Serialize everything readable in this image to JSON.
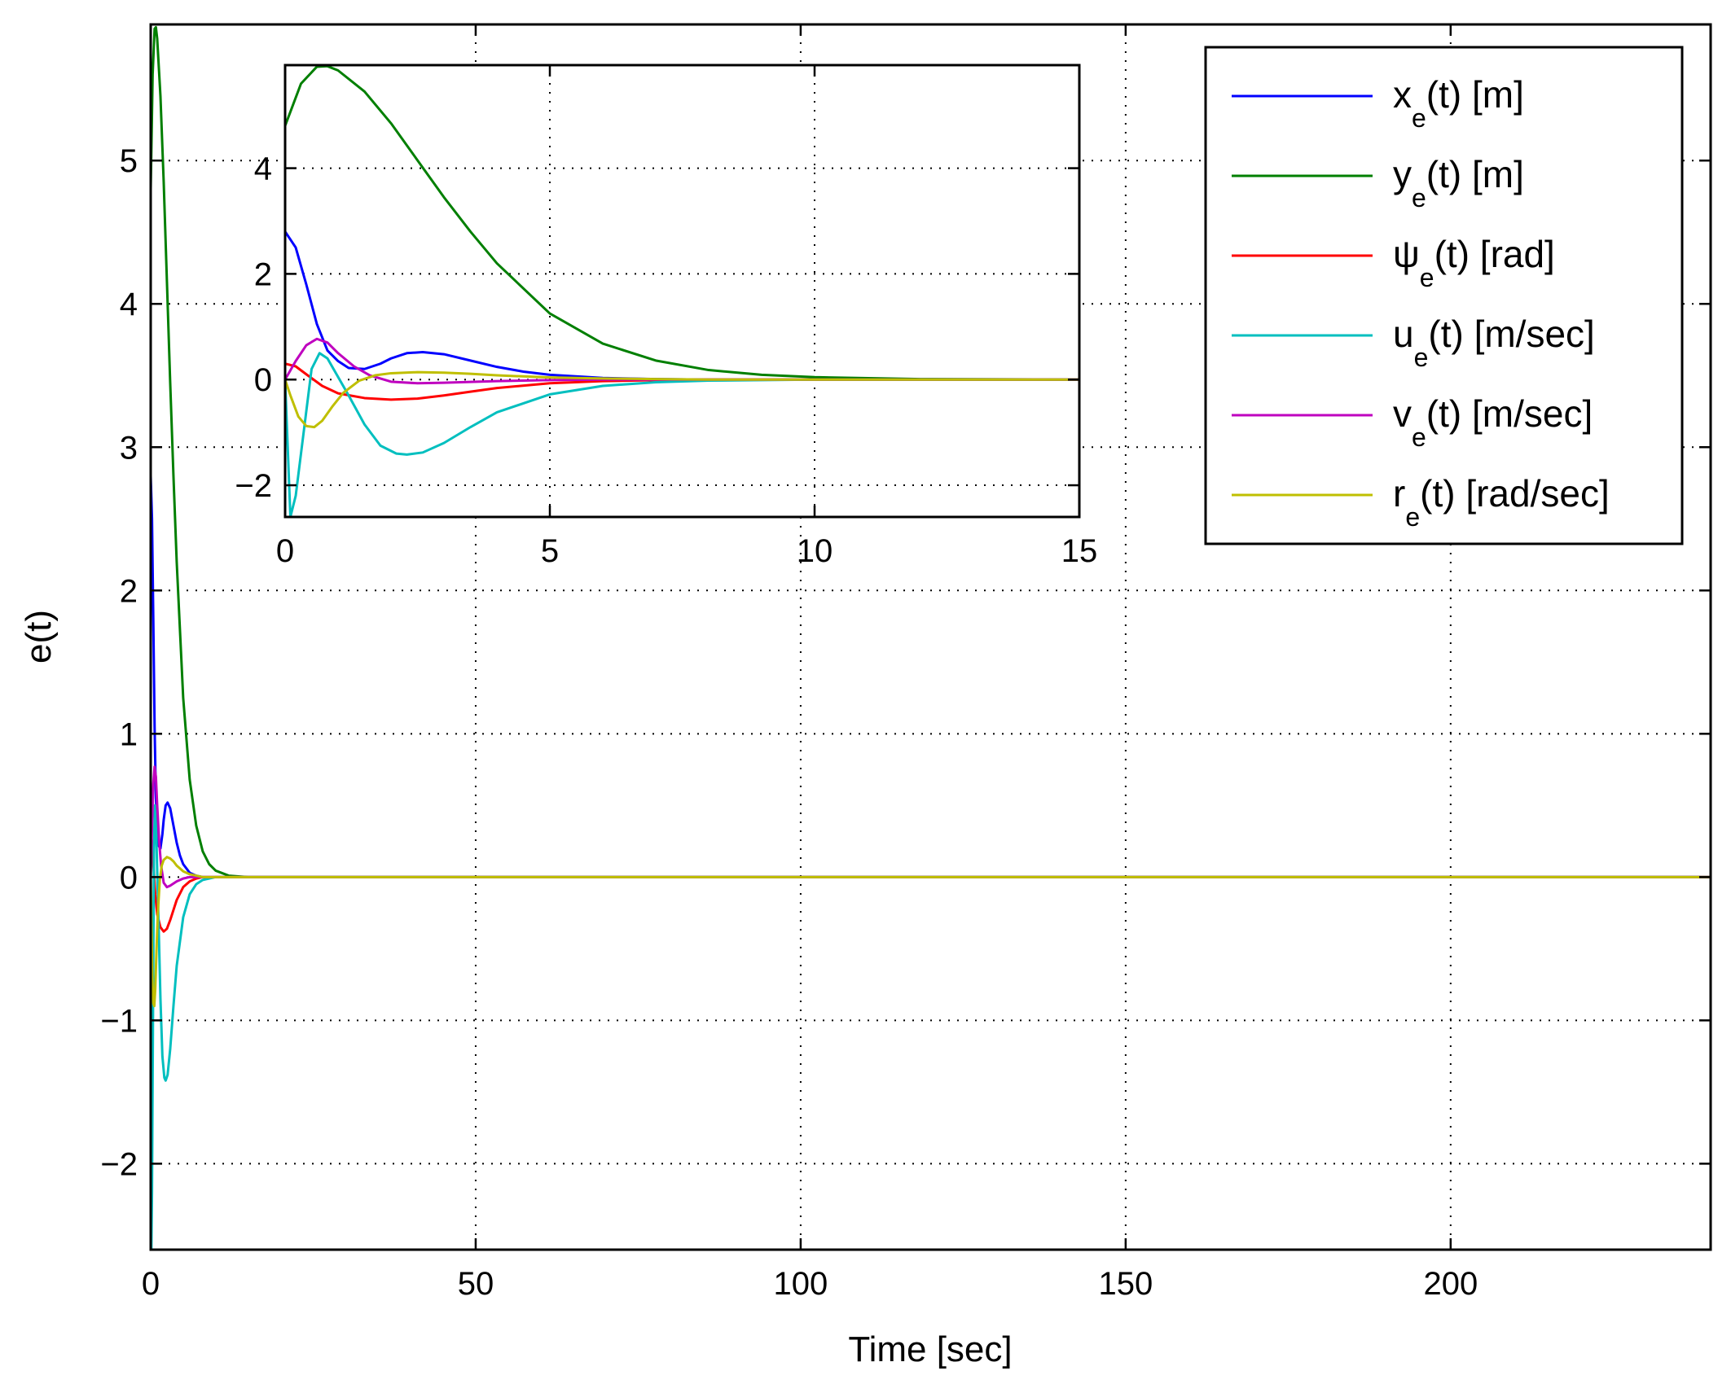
{
  "chart_data": {
    "type": "line",
    "xlabel": "Time [sec]",
    "ylabel": "e(t)",
    "xlim": [
      0,
      240
    ],
    "ylim": [
      -2.6,
      5.95
    ],
    "xticks": [
      0,
      50,
      100,
      150,
      200
    ],
    "yticks": [
      -2,
      -1,
      0,
      1,
      2,
      3,
      4,
      5
    ],
    "xtick_labels": [
      "0",
      "50",
      "100",
      "150",
      "200"
    ],
    "ytick_labels": [
      "−2",
      "−1",
      "0",
      "1",
      "2",
      "3",
      "4",
      "5"
    ],
    "grid": true,
    "legend_position": "top-right",
    "series": [
      {
        "key": "xe",
        "name": "x",
        "sub": "e",
        "suffix": "(t) [m]",
        "color": "#0000ff",
        "x": [
          0,
          0.2,
          0.4,
          0.6,
          0.8,
          1.0,
          1.2,
          1.5,
          1.8,
          2.0,
          2.3,
          2.6,
          3.0,
          3.5,
          4.0,
          4.5,
          5.0,
          6.0,
          7.0,
          8.0,
          10.0,
          12.0,
          15.0,
          240
        ],
        "values": [
          2.8,
          2.5,
          1.8,
          1.05,
          0.55,
          0.35,
          0.22,
          0.2,
          0.3,
          0.4,
          0.5,
          0.52,
          0.48,
          0.36,
          0.24,
          0.15,
          0.09,
          0.03,
          0.01,
          0.0,
          0.0,
          0.0,
          0.0,
          0.0
        ]
      },
      {
        "key": "ye",
        "name": "y",
        "sub": "e",
        "suffix": "(t) [m]",
        "color": "#007f00",
        "x": [
          0,
          0.3,
          0.6,
          0.8,
          1.0,
          1.5,
          2.0,
          2.5,
          3.0,
          3.5,
          4.0,
          5.0,
          6.0,
          7.0,
          8.0,
          9.0,
          10.0,
          12.0,
          15.0,
          240
        ],
        "values": [
          4.8,
          5.6,
          5.92,
          5.93,
          5.85,
          5.45,
          4.85,
          4.15,
          3.45,
          2.8,
          2.2,
          1.25,
          0.68,
          0.36,
          0.18,
          0.09,
          0.045,
          0.01,
          0.0,
          0.0
        ]
      },
      {
        "key": "psie",
        "name": "ψ",
        "sub": "e",
        "suffix": "(t) [rad]",
        "color": "#ff0000",
        "x": [
          0,
          0.2,
          0.4,
          0.7,
          1.0,
          1.5,
          2.0,
          2.5,
          3.0,
          3.5,
          4.0,
          5.0,
          6.0,
          7.0,
          8.0,
          10.0,
          240
        ],
        "values": [
          0.3,
          0.25,
          0.1,
          -0.12,
          -0.26,
          -0.35,
          -0.38,
          -0.36,
          -0.3,
          -0.23,
          -0.16,
          -0.07,
          -0.03,
          -0.01,
          0.0,
          0.0,
          0.0
        ]
      },
      {
        "key": "ue",
        "name": "u",
        "sub": "e",
        "suffix": "(t) [m/sec]",
        "color": "#00bfbf",
        "x": [
          0,
          0.1,
          0.2,
          0.35,
          0.5,
          0.65,
          0.8,
          1.0,
          1.2,
          1.5,
          1.8,
          2.1,
          2.3,
          2.6,
          3.0,
          3.5,
          4.0,
          5.0,
          6.0,
          7.0,
          8.0,
          10.0,
          12.0,
          240
        ],
        "values": [
          0.0,
          -2.6,
          -2.2,
          -1.0,
          0.2,
          0.5,
          0.4,
          0.05,
          -0.3,
          -0.85,
          -1.25,
          -1.4,
          -1.42,
          -1.38,
          -1.2,
          -0.9,
          -0.62,
          -0.28,
          -0.12,
          -0.05,
          -0.02,
          0.0,
          0.0,
          0.0
        ]
      },
      {
        "key": "ve",
        "name": "v",
        "sub": "e",
        "suffix": "(t) [m/sec]",
        "color": "#bf00bf",
        "x": [
          0,
          0.2,
          0.4,
          0.6,
          0.8,
          1.0,
          1.3,
          1.6,
          2.0,
          2.5,
          3.0,
          4.0,
          5.0,
          6.0,
          8.0,
          240
        ],
        "values": [
          0.0,
          0.35,
          0.65,
          0.77,
          0.7,
          0.5,
          0.25,
          0.08,
          -0.04,
          -0.07,
          -0.06,
          -0.03,
          -0.01,
          0.0,
          0.0,
          0.0
        ]
      },
      {
        "key": "re",
        "name": "r",
        "sub": "e",
        "suffix": "(t) [rad/sec]",
        "color": "#bfbf00",
        "x": [
          0,
          0.1,
          0.25,
          0.4,
          0.55,
          0.7,
          0.9,
          1.1,
          1.4,
          1.7,
          2.0,
          2.5,
          3.0,
          3.5,
          4.0,
          5.0,
          6.0,
          7.0,
          8.0,
          10.0,
          12.0,
          240
        ],
        "values": [
          0.0,
          -0.3,
          -0.7,
          -0.88,
          -0.9,
          -0.78,
          -0.5,
          -0.25,
          -0.02,
          0.08,
          0.12,
          0.14,
          0.13,
          0.11,
          0.08,
          0.04,
          0.02,
          0.01,
          0.0,
          0.0,
          0.0,
          0.0
        ]
      }
    ],
    "inset": {
      "xlim": [
        0,
        15
      ],
      "ylim": [
        -2.6,
        5.95
      ],
      "xticks": [
        0,
        5,
        10,
        15
      ],
      "yticks": [
        -2,
        0,
        2,
        4
      ],
      "xtick_labels": [
        "0",
        "5",
        "10",
        "15"
      ],
      "ytick_labels": [
        "−2",
        "0",
        "2",
        "4"
      ],
      "grid": true
    }
  }
}
